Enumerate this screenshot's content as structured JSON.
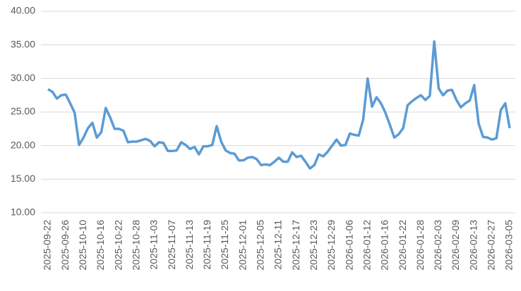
{
  "chart_data": {
    "type": "line",
    "categories": [
      "2025-09-22",
      null,
      null,
      null,
      "2025-09-26",
      null,
      null,
      null,
      "2025-10-10",
      null,
      null,
      null,
      "2025-10-16",
      null,
      null,
      null,
      "2025-10-22",
      null,
      null,
      null,
      "2025-10-28",
      null,
      null,
      null,
      "2025-11-03",
      null,
      null,
      null,
      "2025-11-07",
      null,
      null,
      null,
      "2025-11-13",
      null,
      null,
      null,
      "2025-11-19",
      null,
      null,
      null,
      "2025-11-25",
      null,
      null,
      null,
      "2025-12-01",
      null,
      null,
      null,
      "2025-12-05",
      null,
      null,
      null,
      "2025-12-11",
      null,
      null,
      null,
      "2025-12-17",
      null,
      null,
      null,
      "2025-12-23",
      null,
      null,
      null,
      "2025-12-29",
      null,
      null,
      null,
      "2026-01-06",
      null,
      null,
      null,
      "2026-01-12",
      null,
      null,
      null,
      "2026-01-16",
      null,
      null,
      null,
      "2026-01-22",
      null,
      null,
      null,
      "2026-01-28",
      null,
      null,
      null,
      "2026-02-03",
      null,
      null,
      null,
      "2026-02-09",
      null,
      null,
      null,
      "2026-02-13",
      null,
      null,
      null,
      "2026-02-27",
      null,
      null,
      null,
      "2026-03-05"
    ],
    "series": [
      {
        "color": "#5b9bd5",
        "values": [
          28.4,
          28.0,
          27.0,
          27.5,
          27.6,
          26.3,
          24.9,
          20.1,
          21.2,
          22.6,
          23.4,
          21.2,
          22.0,
          25.6,
          24.2,
          22.5,
          22.5,
          22.2,
          20.5,
          20.6,
          20.6,
          20.8,
          21.0,
          20.7,
          19.9,
          20.5,
          20.4,
          19.2,
          19.2,
          19.3,
          20.5,
          20.1,
          19.5,
          19.8,
          18.7,
          19.9,
          19.9,
          20.1,
          22.9,
          20.6,
          19.3,
          18.9,
          18.8,
          17.8,
          17.8,
          18.2,
          18.3,
          18.0,
          17.1,
          17.2,
          17.1,
          17.6,
          18.2,
          17.6,
          17.6,
          19.0,
          18.3,
          18.5,
          17.6,
          16.6,
          17.1,
          18.7,
          18.4,
          19.1,
          20.0,
          20.9,
          20.0,
          20.1,
          21.8,
          21.6,
          21.5,
          23.9,
          30.0,
          25.8,
          27.2,
          26.3,
          24.9,
          23.1,
          21.2,
          21.7,
          22.6,
          26.0,
          26.6,
          27.1,
          27.5,
          26.8,
          27.4,
          35.5,
          28.5,
          27.5,
          28.2,
          28.3,
          26.8,
          25.7,
          26.3,
          26.7,
          29.0,
          23.3,
          21.3,
          21.2,
          20.9,
          21.1,
          25.3,
          26.3,
          22.6
        ]
      }
    ],
    "ylim": [
      10,
      40
    ],
    "yticks": [
      {
        "value": 10,
        "label": "10.00"
      },
      {
        "value": 15,
        "label": "15.00"
      },
      {
        "value": 20,
        "label": "20.00"
      },
      {
        "value": 25,
        "label": "25.00"
      },
      {
        "value": 30,
        "label": "30.00"
      },
      {
        "value": 35,
        "label": "35.00"
      },
      {
        "value": 40,
        "label": "40.00"
      }
    ],
    "grid": true
  }
}
